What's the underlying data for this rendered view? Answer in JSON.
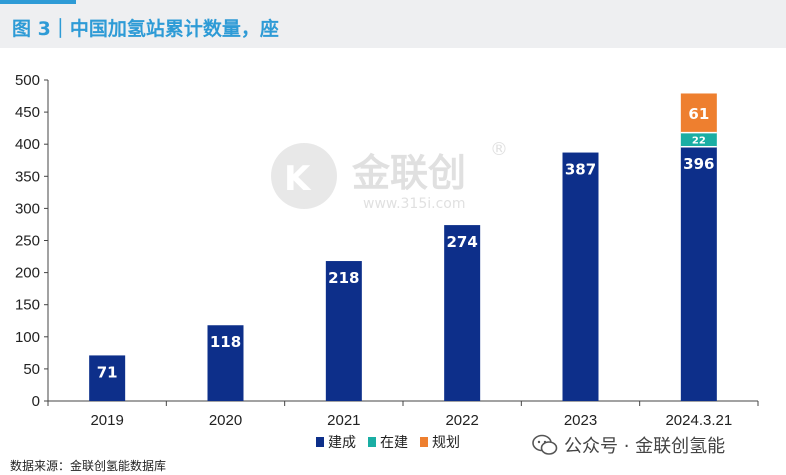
{
  "header": {
    "title": "图 3｜中国加氢站累计数量，座"
  },
  "colors": {
    "built": "#0d2f8a",
    "under_construction": "#1aaea4",
    "planned": "#ee7f2f",
    "header_text": "#2e9bd6"
  },
  "chart_data": {
    "type": "bar",
    "stacked": true,
    "title": "中国加氢站累计数量，座",
    "categories": [
      "2019",
      "2020",
      "2021",
      "2022",
      "2023",
      "2024.3.21"
    ],
    "series": [
      {
        "name": "建成",
        "values": [
          71,
          118,
          218,
          274,
          387,
          396
        ]
      },
      {
        "name": "在建",
        "values": [
          0,
          0,
          0,
          0,
          0,
          22
        ]
      },
      {
        "name": "规划",
        "values": [
          0,
          0,
          0,
          0,
          0,
          61
        ]
      }
    ],
    "ylim": [
      0,
      500
    ],
    "yticks": [
      0,
      50,
      100,
      150,
      200,
      250,
      300,
      350,
      400,
      450,
      500
    ],
    "legend_position": "bottom",
    "grid": false
  },
  "watermark": {
    "brand": "金联创",
    "url": "www.315i.com",
    "reg": "®"
  },
  "footer": {
    "source": "数据来源：金联创氢能数据库",
    "wechat": "公众号 · 金联创氢能"
  }
}
